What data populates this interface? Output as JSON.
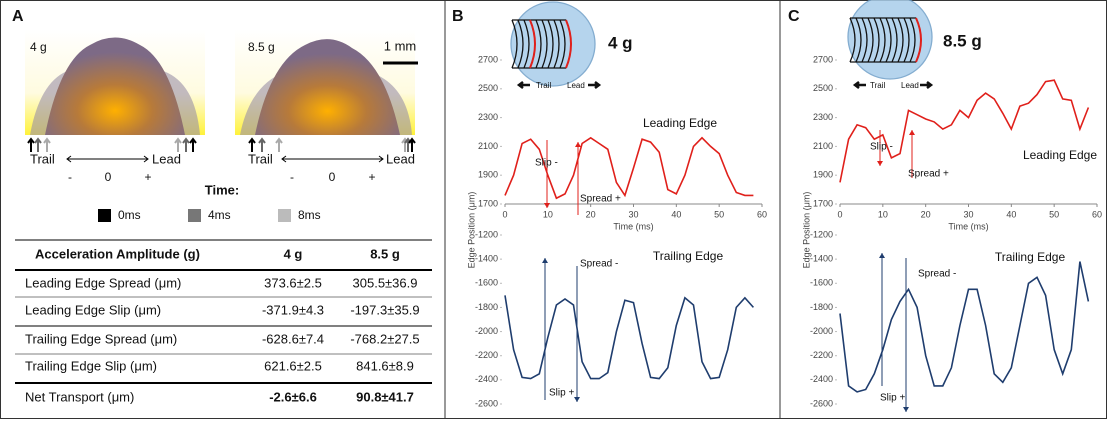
{
  "panel_a": {
    "label": "A",
    "image_labels": [
      "4 g",
      "8.5 g"
    ],
    "scale_bar": "1 mm",
    "axis": {
      "trail": "Trail",
      "lead": "Lead",
      "minus": "-",
      "zero": "0",
      "plus": "+"
    },
    "legend": {
      "title": "Time:",
      "items": [
        "0ms",
        "4ms",
        "8ms"
      ]
    },
    "table": {
      "header": [
        "Acceleration Amplitude (g)",
        "4 g",
        "8.5 g"
      ],
      "rows": [
        [
          "Leading Edge Spread (μm)",
          "373.6±2.5",
          "305.5±36.9"
        ],
        [
          "Leading Edge Slip (μm)",
          "-371.9±4.3",
          "-197.3±35.9"
        ],
        [
          "Trailing Edge Spread (μm)",
          "-628.6±7.4",
          "-768.2±27.5"
        ],
        [
          "Trailing Edge Slip (μm)",
          "621.6±2.5",
          "841.6±8.9"
        ],
        [
          "Net Transport (μm)",
          "-2.6±6.6",
          "90.8±41.7"
        ]
      ]
    }
  },
  "panel_b": {
    "label": "B",
    "acceleration": "4 g",
    "trail": "Trail",
    "lead": "Lead"
  },
  "panel_c": {
    "label": "C",
    "acceleration": "8.5 g",
    "trail": "Trail",
    "lead": "Lead"
  },
  "chart_data": [
    {
      "type": "line",
      "xlabel": "Time (ms)",
      "ylabel": "Edge Position (μm)",
      "xlim": [
        0,
        60
      ],
      "xticks": [
        0,
        10,
        20,
        30,
        40,
        50,
        60
      ],
      "ylim": [
        1700,
        2700
      ],
      "yticks": [
        1700,
        1900,
        2100,
        2300,
        2500,
        2700
      ],
      "annotations": [
        "Slip -",
        "Spread +"
      ],
      "x": [
        0,
        2,
        4,
        6,
        8,
        10,
        12,
        14,
        16,
        18,
        20,
        22,
        24,
        26,
        28,
        30,
        32,
        34,
        36,
        38,
        40,
        42,
        44,
        46,
        48,
        50,
        52,
        54,
        56,
        58
      ],
      "series": [
        {
          "name": "Leading Edge",
          "color": "#e0201b",
          "values": [
            1760,
            1900,
            2120,
            2150,
            2080,
            1900,
            1740,
            1770,
            1900,
            2120,
            2160,
            2120,
            2080,
            1850,
            1760,
            1950,
            2150,
            2130,
            2060,
            1800,
            1770,
            1900,
            2100,
            2160,
            2100,
            2050,
            1900,
            1780,
            1760,
            1760
          ]
        }
      ]
    },
    {
      "type": "line",
      "xlim": [
        0,
        60
      ],
      "ylim": [
        -2600,
        -1200
      ],
      "yticks": [
        -2600,
        -2400,
        -2200,
        -2000,
        -1800,
        -1600,
        -1400,
        -1200
      ],
      "annotations": [
        "Spread -",
        "Slip +"
      ],
      "x": [
        0,
        2,
        4,
        6,
        8,
        10,
        12,
        14,
        16,
        18,
        20,
        22,
        24,
        26,
        28,
        30,
        32,
        34,
        36,
        38,
        40,
        42,
        44,
        46,
        48,
        50,
        52,
        54,
        56,
        58
      ],
      "series": [
        {
          "name": "Trailing Edge",
          "color": "#1f3d6e",
          "values": [
            -1700,
            -2150,
            -2380,
            -2390,
            -2350,
            -2050,
            -1780,
            -1730,
            -1780,
            -2250,
            -2390,
            -2390,
            -2340,
            -2000,
            -1740,
            -1760,
            -2100,
            -2380,
            -2390,
            -2300,
            -1950,
            -1720,
            -1780,
            -2250,
            -2390,
            -2380,
            -2150,
            -1800,
            -1720,
            -1800
          ]
        }
      ]
    },
    {
      "type": "line",
      "xlabel": "Time (ms)",
      "ylabel": "Edge Position (μm)",
      "xlim": [
        0,
        60
      ],
      "xticks": [
        0,
        10,
        20,
        30,
        40,
        50,
        60
      ],
      "ylim": [
        1700,
        2700
      ],
      "yticks": [
        1700,
        1900,
        2100,
        2300,
        2500,
        2700
      ],
      "annotations": [
        "Slip -",
        "Spread +"
      ],
      "x": [
        0,
        2,
        4,
        6,
        8,
        10,
        12,
        14,
        16,
        18,
        20,
        22,
        24,
        26,
        28,
        30,
        32,
        34,
        36,
        38,
        40,
        42,
        44,
        46,
        48,
        50,
        52,
        54,
        56,
        58
      ],
      "series": [
        {
          "name": "Leading Edge",
          "color": "#e0201b",
          "values": [
            1850,
            2150,
            2250,
            2230,
            2150,
            2180,
            2020,
            2050,
            2350,
            2320,
            2290,
            2270,
            2220,
            2250,
            2350,
            2300,
            2420,
            2470,
            2430,
            2330,
            2220,
            2380,
            2400,
            2460,
            2550,
            2560,
            2430,
            2420,
            2220,
            2370
          ]
        }
      ]
    },
    {
      "type": "line",
      "xlim": [
        0,
        60
      ],
      "ylim": [
        -2600,
        -1200
      ],
      "yticks": [
        -2600,
        -2400,
        -2200,
        -2000,
        -1800,
        -1600,
        -1400,
        -1200
      ],
      "annotations": [
        "Spread -",
        "Slip +"
      ],
      "x": [
        0,
        2,
        4,
        6,
        8,
        10,
        12,
        14,
        16,
        18,
        20,
        22,
        24,
        26,
        28,
        30,
        32,
        34,
        36,
        38,
        40,
        42,
        44,
        46,
        48,
        50,
        52,
        54,
        56,
        58
      ],
      "series": [
        {
          "name": "Trailing Edge",
          "color": "#1f3d6e",
          "values": [
            -1850,
            -2450,
            -2500,
            -2480,
            -2350,
            -2150,
            -1900,
            -1750,
            -1650,
            -1800,
            -2200,
            -2450,
            -2450,
            -2300,
            -1950,
            -1650,
            -1650,
            -1950,
            -2350,
            -2420,
            -2300,
            -1950,
            -1600,
            -1550,
            -1700,
            -2150,
            -2350,
            -2150,
            -1420,
            -1750
          ]
        }
      ]
    }
  ]
}
